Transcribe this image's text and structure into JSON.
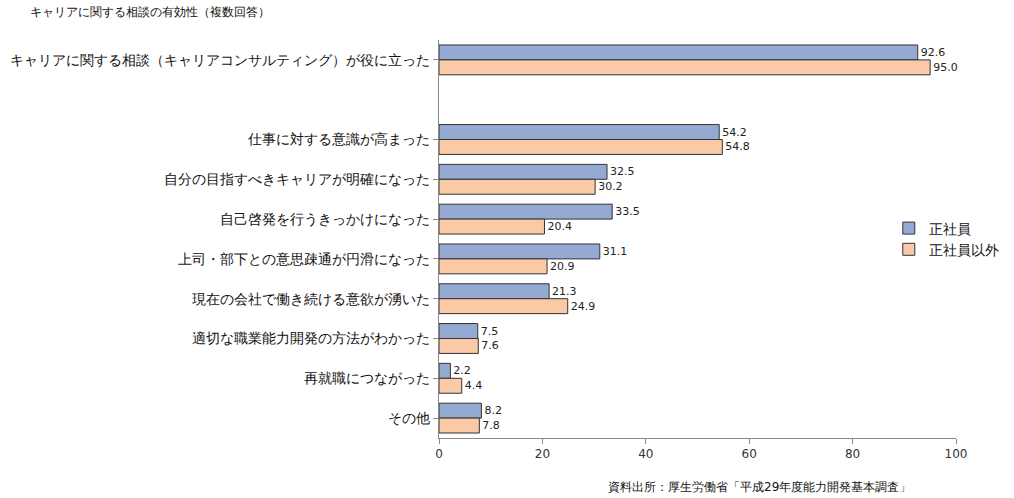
{
  "chart_data": {
    "type": "bar",
    "orientation": "horizontal",
    "title": "キャリアに関する相談の有効性（複数回答）",
    "annotations": [
      "資料出所：厚生労働省「平成29年度能力開発基本調査」"
    ],
    "categories": [
      "キャリアに関する相談（キャリアコンサルティング）が役に立った",
      null,
      "仕事に対する意識が高まった",
      "自分の目指すべきキャリアが明確になった",
      "自己啓発を行うきっかけになった",
      "上司・部下との意思疎通が円滑になった",
      "現在の会社で働き続ける意欲が湧いた",
      "適切な職業能力開発の方法がわかった",
      "再就職につながった",
      "その他"
    ],
    "series": [
      {
        "name": "正社員",
        "color": "#95AAD3",
        "values": [
          92.6,
          null,
          54.2,
          32.5,
          33.5,
          31.1,
          21.3,
          7.5,
          2.2,
          8.2
        ],
        "value_labels": [
          "92.6",
          null,
          "54.2",
          "32.5",
          "33.5",
          "31.1",
          "21.3",
          "7.5",
          "2.2",
          "8.2"
        ]
      },
      {
        "name": "正社員以外",
        "color": "#FAC9A5",
        "values": [
          95.0,
          null,
          54.8,
          30.2,
          20.4,
          20.9,
          24.9,
          7.6,
          4.4,
          7.8
        ],
        "value_labels": [
          "95.0",
          null,
          "54.8",
          "30.2",
          "20.4",
          "20.9",
          "24.9",
          "7.6",
          "4.4",
          "7.8"
        ]
      }
    ],
    "xlim": [
      0,
      100
    ],
    "xticks": [
      0,
      20,
      40,
      60,
      80,
      100
    ],
    "grid": false,
    "legend": "right",
    "data_labels": true
  }
}
